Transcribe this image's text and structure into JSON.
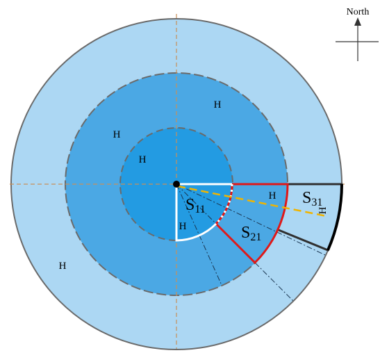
{
  "compass": {
    "label": "North",
    "icon": "north-arrow-icon"
  },
  "sectors": [
    {
      "id": "S11",
      "base": "S",
      "sub": "11"
    },
    {
      "id": "S21",
      "base": "S",
      "sub": "21"
    },
    {
      "id": "S31",
      "base": "S",
      "sub": "31"
    }
  ],
  "markers": {
    "glyph": "H",
    "icon": "h-marker-icon"
  },
  "colors": {
    "outer_ring": "#acd7f3",
    "middle_ring": "#4ba8e4",
    "inner_disk": "#239be2",
    "ring_border": "#6a6a6a",
    "axis_line": "#c8905a",
    "sector_s11": "#ffffff",
    "sector_s21": "#e01818",
    "sector_s31": "#303030",
    "direction_line": "#f0b400",
    "center": "#000000"
  }
}
